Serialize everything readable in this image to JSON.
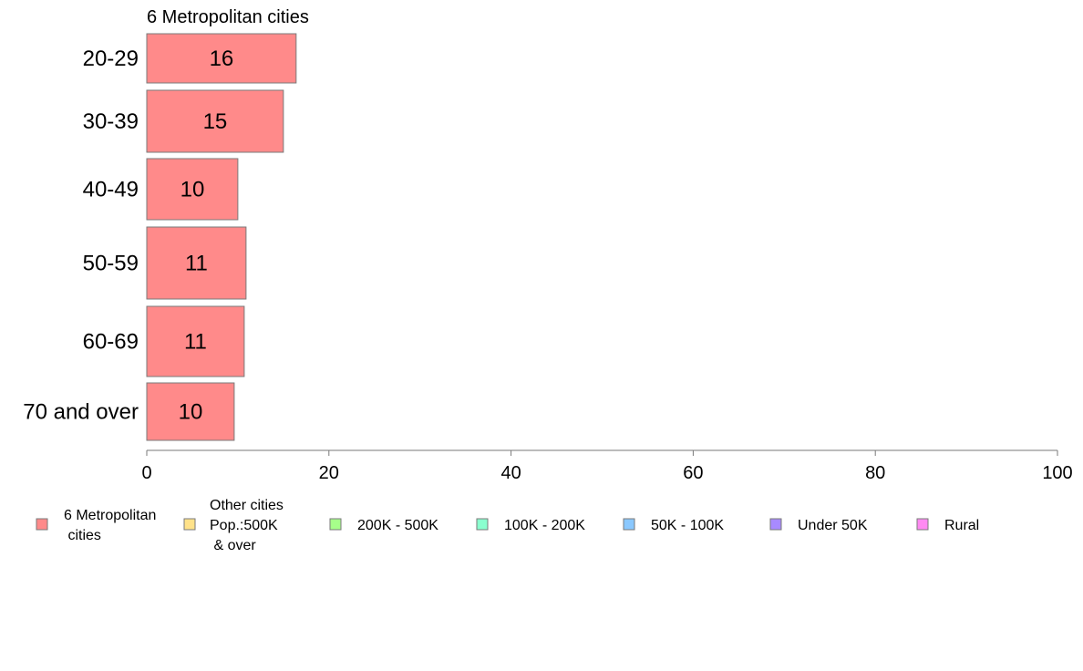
{
  "chart_data": {
    "type": "bar",
    "orientation": "horizontal",
    "panel_title": "6 Metropolitan cities",
    "categories": [
      "20-29",
      "30-39",
      "40-49",
      "50-59",
      "60-69",
      "70 and over"
    ],
    "series": [
      {
        "name": "6 Metropolitan cities",
        "values": [
          16.4,
          15.0,
          10.0,
          10.9,
          10.7,
          9.6
        ],
        "labels": [
          "16",
          "15",
          "10",
          "11",
          "11",
          "10"
        ],
        "color": "#ff8a8a"
      }
    ],
    "xlim": [
      0,
      100
    ],
    "xticks": [
      0,
      20,
      40,
      60,
      80,
      100
    ],
    "grid": false,
    "legend_position": "bottom",
    "legend": [
      {
        "lines": [
          "6 Metropolitan",
          " cities"
        ],
        "color": "#ff8a8a"
      },
      {
        "lines": [
          "Other cities",
          "Pop.:500K",
          " & over"
        ],
        "color": "#ffe28a"
      },
      {
        "lines": [
          "200K - 500K"
        ],
        "color": "#a6ff8a"
      },
      {
        "lines": [
          "100K - 200K"
        ],
        "color": "#8affcf"
      },
      {
        "lines": [
          "50K - 100K"
        ],
        "color": "#8ac8ff"
      },
      {
        "lines": [
          "Under 50K"
        ],
        "color": "#a88aff"
      },
      {
        "lines": [
          "Rural"
        ],
        "color": "#ff8af2"
      }
    ]
  }
}
